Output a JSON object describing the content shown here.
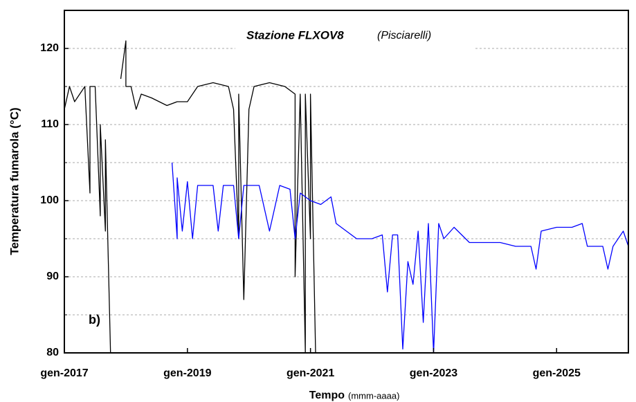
{
  "chart_data": {
    "type": "line",
    "title": "Stazione FLXOV8",
    "subtitle": "(Pisciarelli)",
    "ylabel": "Temperatura fumarola (°C)",
    "xlabel": "Tempo",
    "xlabel_unit": "(mmm-aaaa)",
    "annotation": "b)",
    "ylim": [
      80,
      125
    ],
    "yticks": [
      80,
      90,
      100,
      110,
      120
    ],
    "grid_minor_yticks": [
      85,
      95,
      105,
      115
    ],
    "grid": true,
    "xlim": [
      "2017-01",
      "2026-03"
    ],
    "xticks": [
      {
        "value": "2017-01",
        "label": "gen-2017"
      },
      {
        "value": "2019-01",
        "label": "gen-2019"
      },
      {
        "value": "2021-01",
        "label": "gen-2021"
      },
      {
        "value": "2023-01",
        "label": "gen-2023"
      },
      {
        "value": "2025-01",
        "label": "gen-2025"
      }
    ],
    "series": [
      {
        "color": "#000000",
        "x": [
          "2017-01",
          "2017-02",
          "2017-03",
          "2017-04",
          "2017-05",
          "2017-06",
          "2017-06",
          "2017-07",
          "2017-08",
          "2017-08",
          "2017-09",
          "2017-09",
          "2017-10",
          "2017-11",
          "2017-12",
          "2018-01",
          "2018-01",
          "2018-02",
          "2018-03",
          "2018-04",
          "2018-06",
          "2018-09",
          "2018-11",
          "2019-01",
          "2019-03",
          "2019-06",
          "2019-09",
          "2019-10",
          "2019-11",
          "2019-11",
          "2019-12",
          "2020-01",
          "2020-02",
          "2020-05",
          "2020-08",
          "2020-10",
          "2020-10",
          "2020-11",
          "2020-12",
          "2020-12",
          "2021-01",
          "2021-01",
          "2021-02"
        ],
        "values": [
          112,
          115,
          113,
          114,
          115,
          101,
          115,
          115,
          98,
          110,
          96,
          108,
          80,
          null,
          116,
          121,
          115,
          115,
          112,
          114,
          113.5,
          112.5,
          113,
          113,
          115,
          115.5,
          115,
          112,
          95,
          114,
          87,
          112,
          115,
          115.5,
          115,
          114,
          90,
          114,
          80,
          114,
          95,
          114,
          80
        ]
      },
      {
        "color": "#0000ff",
        "x": [
          "2018-10",
          "2018-11",
          "2018-11",
          "2018-12",
          "2019-01",
          "2019-02",
          "2019-03",
          "2019-06",
          "2019-07",
          "2019-08",
          "2019-10",
          "2019-11",
          "2019-12",
          "2020-03",
          "2020-05",
          "2020-07",
          "2020-09",
          "2020-10",
          "2020-11",
          "2021-01",
          "2021-03",
          "2021-05",
          "2021-06",
          "2021-08",
          "2021-10",
          "2022-01",
          "2022-03",
          "2022-04",
          "2022-05",
          "2022-06",
          "2022-07",
          "2022-08",
          "2022-09",
          "2022-10",
          "2022-11",
          "2022-12",
          "2023-01",
          "2023-02",
          "2023-03",
          "2023-05",
          "2023-08",
          "2023-11",
          "2024-02",
          "2024-05",
          "2024-08",
          "2024-09",
          "2024-10",
          "2025-01",
          "2025-04",
          "2025-06",
          "2025-07",
          "2025-10",
          "2025-11",
          "2025-12",
          "2026-02",
          "2026-03"
        ],
        "values": [
          105,
          95,
          103,
          96,
          102.5,
          95,
          102,
          102,
          96,
          102,
          102,
          95,
          102,
          102,
          96,
          102,
          101.5,
          95,
          101,
          100,
          99.5,
          100.5,
          97,
          96,
          95,
          95,
          95.5,
          88,
          95.5,
          95.5,
          80.5,
          92,
          89,
          96,
          84,
          97,
          80,
          97,
          95,
          96.5,
          94.5,
          94.5,
          94.5,
          94,
          94,
          91,
          96,
          96.5,
          96.5,
          97,
          94,
          94,
          91,
          94,
          96,
          94
        ]
      }
    ]
  }
}
